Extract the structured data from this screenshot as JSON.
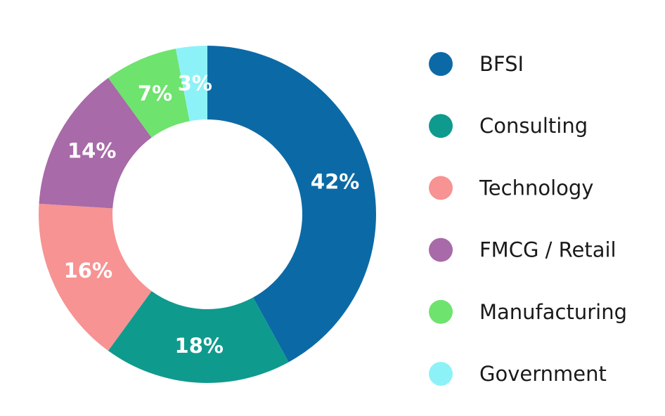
{
  "chart_data": {
    "type": "pie",
    "donut": true,
    "start": "top, clockwise",
    "legend_position": "right",
    "categories": [
      "BFSI",
      "Consulting",
      "Technology",
      "FMCG / Retail",
      "Manufacturing",
      "Government"
    ],
    "values": [
      42,
      18,
      16,
      14,
      7,
      3
    ],
    "data_labels": [
      "42%",
      "18%",
      "16%",
      "14%",
      "7%",
      "3%"
    ],
    "colors": [
      "#0b6aa6",
      "#0f9a8e",
      "#f79393",
      "#a86aa8",
      "#6ee36e",
      "#8df2f7"
    ],
    "label_colors": [
      "#ffffff",
      "#ffffff",
      "#ffffff",
      "#ffffff",
      "#ffffff",
      "#1c2b45"
    ]
  }
}
